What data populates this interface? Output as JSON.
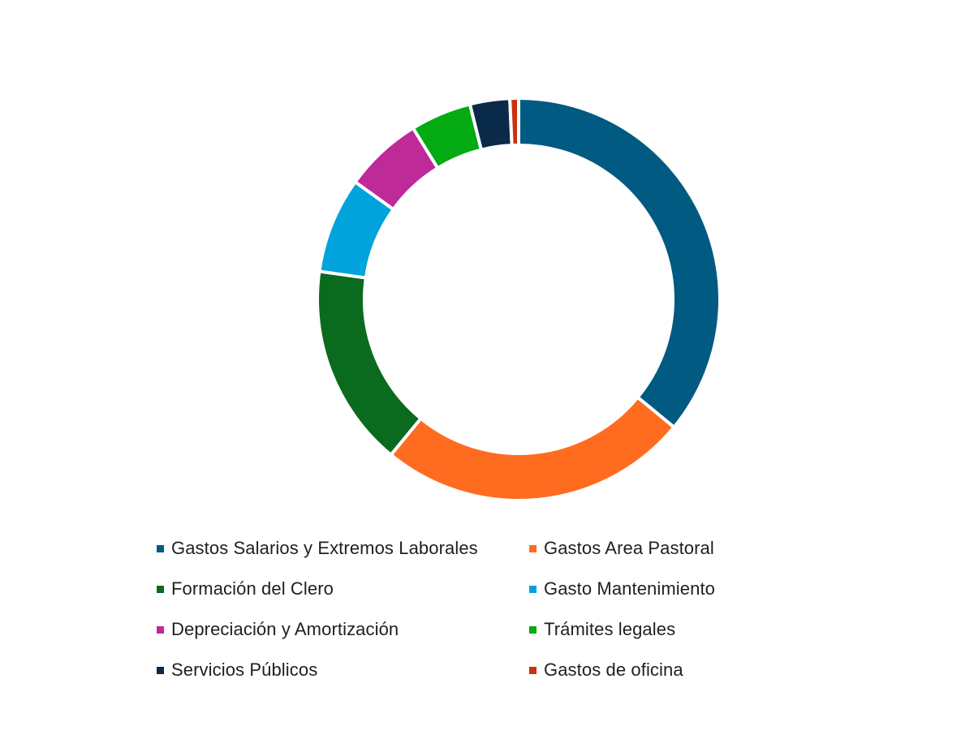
{
  "chart_data": {
    "type": "pie",
    "variant": "donut",
    "title": "",
    "legend_position": "bottom",
    "series": [
      {
        "name": "Gastos Salarios y Extremos Laborales",
        "value": 36.0,
        "color": "#005A81"
      },
      {
        "name": "Gastos Area Pastoral",
        "value": 25.0,
        "color": "#FF6B1F"
      },
      {
        "name": "Formación del Clero",
        "value": 16.3,
        "color": "#0A6A1E"
      },
      {
        "name": "Gasto Mantenimiento",
        "value": 7.7,
        "color": "#00A3DC"
      },
      {
        "name": "Depreciación y Amortización",
        "value": 6.3,
        "color": "#BE2B99"
      },
      {
        "name": "Trámites legales",
        "value": 4.9,
        "color": "#04AA12"
      },
      {
        "name": "Servicios Públicos",
        "value": 3.2,
        "color": "#0A2A4A"
      },
      {
        "name": "Gastos de oficina",
        "value": 0.7,
        "color": "#C8320F"
      }
    ]
  }
}
